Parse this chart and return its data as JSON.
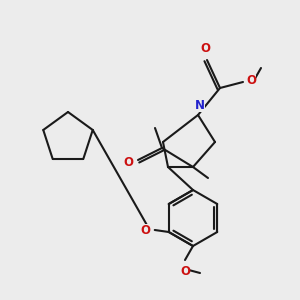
{
  "bg_color": "#ececec",
  "bond_color": "#1a1a1a",
  "N_color": "#2222cc",
  "O_color": "#cc1111",
  "lw": 1.5,
  "figsize": [
    3.0,
    3.0
  ],
  "dpi": 100,
  "xlim": [
    0,
    300
  ],
  "ylim": [
    0,
    300
  ],
  "N_label": "N",
  "O_label": "O",
  "fontsize": 8.5
}
